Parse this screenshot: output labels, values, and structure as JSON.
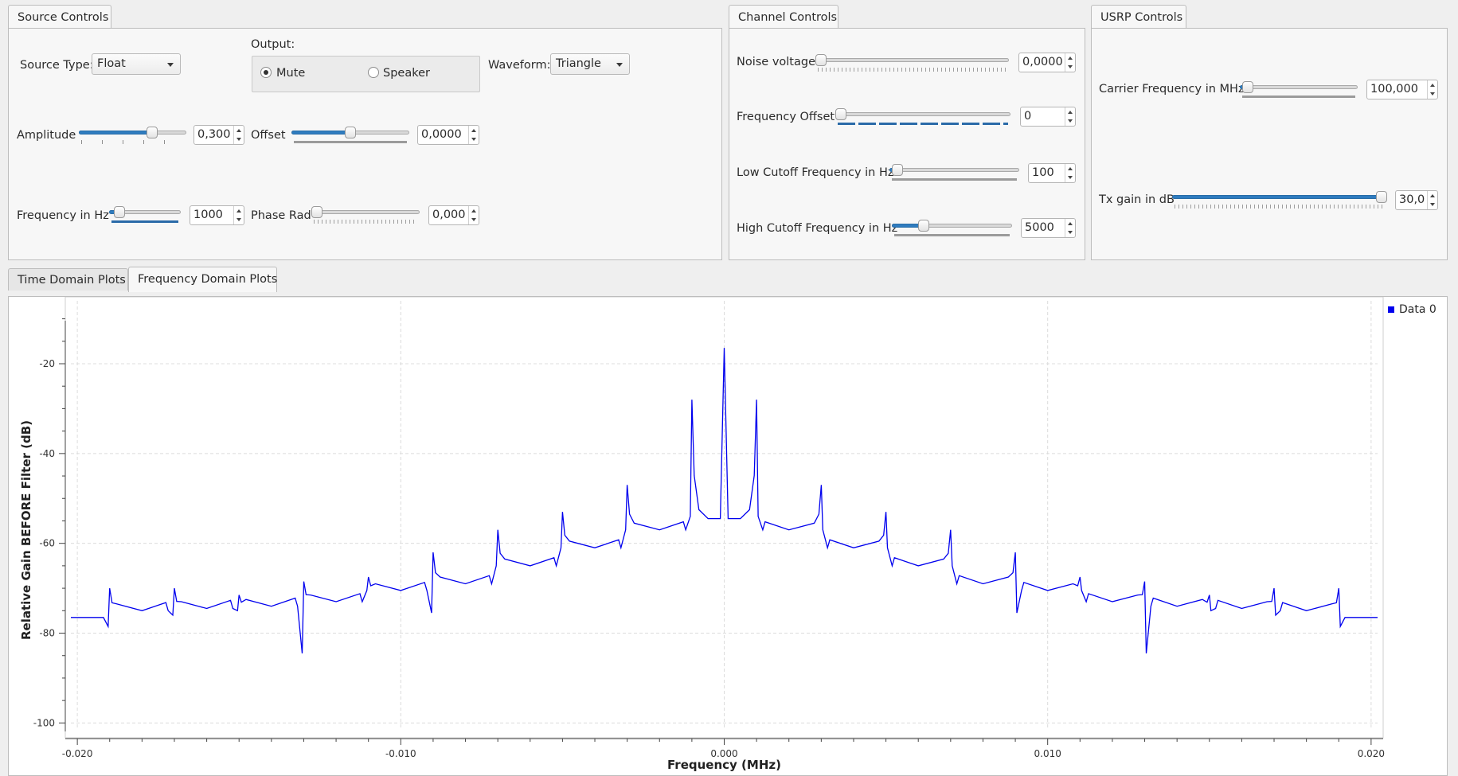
{
  "source_controls": {
    "tab_label": "Source Controls",
    "source_type_label": "Source Type:",
    "source_type_value": "Float",
    "output_label": "Output:",
    "output_options": [
      "Mute",
      "Speaker"
    ],
    "output_selected": "Mute",
    "waveform_label": "Waveform:",
    "waveform_value": "Triangle",
    "amplitude_label": "Amplitude",
    "amplitude_value": "0,300",
    "offset_label": "Offset",
    "offset_value": "0,0000",
    "frequency_label": "Frequency in Hz",
    "frequency_value": "1000",
    "phase_label": "Phase Rad",
    "phase_value": "0,000"
  },
  "channel_controls": {
    "tab_label": "Channel Controls",
    "noise_label": "Noise voltage",
    "noise_value": "0,0000",
    "freq_offset_label": "Frequency Offset",
    "freq_offset_value": "0",
    "low_cutoff_label": "Low Cutoff Frequency in Hz",
    "low_cutoff_value": "100",
    "high_cutoff_label": "High Cutoff Frequency in Hz",
    "high_cutoff_value": "5000"
  },
  "usrp_controls": {
    "tab_label": "USRP Controls",
    "carrier_label": "Carrier Frequency in MHz",
    "carrier_value": "100,000",
    "tx_gain_label": "Tx gain in dB",
    "tx_gain_value": "30,0"
  },
  "slider_levels": {
    "amplitude": 0.7,
    "offset": 0.5,
    "frequency": 0.08,
    "phase": 0.0,
    "noise": 0.0,
    "freq_offset": 0.0,
    "low_cutoff": 0.02,
    "high_cutoff": 0.24,
    "carrier": 0.02,
    "tx_gain": 1.0
  },
  "plot_tabs": [
    "Time Domain Plots",
    "Frequency Domain Plots"
  ],
  "active_plot_tab": "Frequency Domain Plots",
  "colors": {
    "accent": "#2f7cbf",
    "trace": "#0000ee"
  },
  "chart_data": {
    "type": "line",
    "xlabel": "Frequency (MHz)",
    "ylabel": "Relative Gain BEFORE Filter (dB)",
    "xlim": [
      -0.0202,
      0.0202
    ],
    "ylim": [
      -101,
      -6
    ],
    "x_ticks": [
      -0.02,
      -0.01,
      0.0,
      0.01,
      0.02
    ],
    "x_tick_labels": [
      "-0.020",
      "-0.010",
      "0.000",
      "0.010",
      "0.020"
    ],
    "y_ticks": [
      -100,
      -80,
      -60,
      -40,
      -20
    ],
    "y_tick_labels": [
      "-100",
      "-80",
      "-60",
      "-40",
      "-20"
    ],
    "grid": true,
    "legend_position": "top-right",
    "series": [
      {
        "name": "Data 0",
        "color": "#0000ee",
        "center_peak": {
          "x": 0.0,
          "y": -16.5
        },
        "center_floor": -54.5,
        "harmonics": [
          {
            "x": 0.001,
            "peak": -28,
            "notch": -54,
            "tail": -54
          },
          {
            "x": 0.003,
            "peak": -47,
            "notch": -57,
            "tail": -57
          },
          {
            "x": 0.005,
            "peak": -53,
            "notch": -61,
            "tail": -61
          },
          {
            "x": 0.007,
            "peak": -57,
            "notch": -65,
            "tail": -65
          },
          {
            "x": 0.009,
            "peak": -62,
            "notch": -75.5,
            "tail": -69
          },
          {
            "x": 0.011,
            "peak": -67.5,
            "notch": -70.5,
            "tail": -70.5
          },
          {
            "x": 0.013,
            "peak": -68.5,
            "notch": -84.5,
            "tail": -73
          },
          {
            "x": 0.015,
            "peak": -71.5,
            "notch": -75,
            "tail": -74
          },
          {
            "x": 0.017,
            "peak": -70,
            "notch": -76,
            "tail": -74.5
          },
          {
            "x": 0.019,
            "peak": -70,
            "notch": -78.5,
            "tail": -75
          }
        ],
        "edge_level": -76.5
      }
    ]
  }
}
